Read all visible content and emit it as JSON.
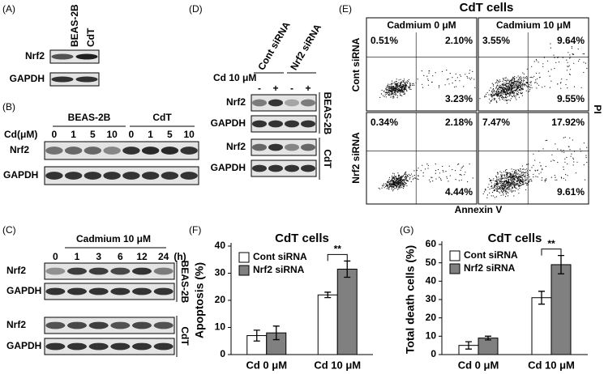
{
  "panel_a": {
    "label": "(A)",
    "columns": [
      "BEAS-2B",
      "CdT"
    ],
    "rows": [
      "Nrf2",
      "GAPDH"
    ]
  },
  "panel_b": {
    "label": "(B)",
    "groups": [
      "BEAS-2B",
      "CdT"
    ],
    "dose_label": "Cd(μM)",
    "doses": [
      "0",
      "1",
      "5",
      "10",
      "0",
      "1",
      "5",
      "10"
    ],
    "rows": [
      "Nrf2",
      "GAPDH"
    ]
  },
  "panel_c": {
    "label": "(C)",
    "treatment": "Cadmium 10 μM",
    "unit": "(h)",
    "times": [
      "0",
      "1",
      "3",
      "6",
      "12",
      "24"
    ],
    "rows": [
      "Nrf2",
      "GAPDH",
      "Nrf2",
      "GAPDH"
    ],
    "cell_lines": [
      "BEAS-2B",
      "CdT"
    ]
  },
  "panel_d": {
    "label": "(D)",
    "columns": [
      "Cont siRNA",
      "Nrf2 siRNA"
    ],
    "treatment": "Cd 10 μM",
    "signs": [
      "-",
      "+",
      "-",
      "+"
    ],
    "rows": [
      "Nrf2",
      "GAPDH",
      "Nrf2",
      "GAPDH"
    ],
    "cell_lines": [
      "BEAS-2B",
      "CdT"
    ]
  },
  "panel_e": {
    "label": "(E)",
    "title": "CdT cells",
    "columns": [
      "Cadmium 0 μM",
      "Cadmium 10 μM"
    ],
    "rows": [
      "Cont siRNA",
      "Nrf2 siRNA"
    ],
    "y_axis": "PI",
    "x_axis": "Annexin V",
    "quadrants": [
      [
        [
          "0.51%",
          "2.10%",
          "3.23%"
        ],
        [
          "3.55%",
          "9.64%",
          "9.55%"
        ]
      ],
      [
        [
          "0.34%",
          "2.18%",
          "4.44%"
        ],
        [
          "7.47%",
          "17.92%",
          "9.61%"
        ]
      ]
    ]
  },
  "chart_data": [
    {
      "type": "bar",
      "label": "(F)",
      "title": "CdT cells",
      "y_label": "Apoptosis (%)",
      "categories": [
        "Cd 0 μM",
        "Cd 10 μM"
      ],
      "series": [
        {
          "name": "Cont siRNA",
          "color": "#ffffff",
          "values": [
            7,
            22
          ],
          "errors": [
            2,
            1
          ]
        },
        {
          "name": "Nrf2 siRNA",
          "color": "#808080",
          "values": [
            8,
            31.5
          ],
          "errors": [
            2.5,
            3
          ]
        }
      ],
      "ylim": [
        0,
        40
      ],
      "yticks": [
        0,
        10,
        20,
        30,
        40
      ],
      "annotation": "**"
    },
    {
      "type": "bar",
      "label": "(G)",
      "title": "CdT cells",
      "y_label": "Total death cells (%)",
      "categories": [
        "Cd 0 μM",
        "Cd 10 μM"
      ],
      "series": [
        {
          "name": "Cont siRNA",
          "color": "#ffffff",
          "values": [
            5,
            31
          ],
          "errors": [
            2,
            3.5
          ]
        },
        {
          "name": "Nrf2 siRNA",
          "color": "#808080",
          "values": [
            9,
            49
          ],
          "errors": [
            1,
            5
          ]
        }
      ],
      "ylim": [
        0,
        60
      ],
      "yticks": [
        0,
        10,
        20,
        30,
        40,
        50,
        60
      ],
      "annotation": "**"
    }
  ]
}
